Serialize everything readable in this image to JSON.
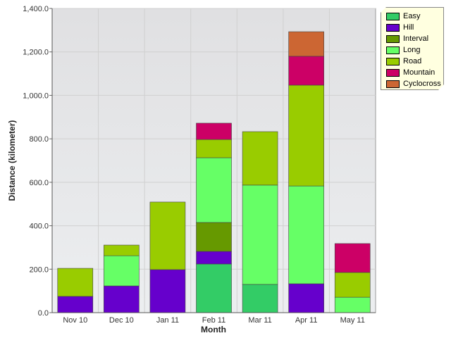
{
  "chart_data": {
    "type": "bar",
    "stacked": true,
    "xlabel": "Month",
    "ylabel": "Distance (kilometer)",
    "ylim": [
      0,
      1400
    ],
    "yticks": [
      "0.0",
      "200.0",
      "400.0",
      "600.0",
      "800.0",
      "1,000.0",
      "1,200.0",
      "1,400.0"
    ],
    "categories": [
      "Nov 10",
      "Dec 10",
      "Jan 11",
      "Feb 11",
      "Mar 11",
      "Apr 11",
      "May 11"
    ],
    "legend_position": "top-right",
    "series": [
      {
        "name": "Easy",
        "color": "#33cc66",
        "values": [
          0,
          0,
          0,
          224,
          130,
          0,
          0
        ]
      },
      {
        "name": "Hill",
        "color": "#6600cc",
        "values": [
          75,
          123,
          198,
          58,
          0,
          133,
          0
        ]
      },
      {
        "name": "Interval",
        "color": "#669900",
        "values": [
          0,
          0,
          0,
          133,
          0,
          0,
          0
        ]
      },
      {
        "name": "Long",
        "color": "#66ff66",
        "values": [
          0,
          139,
          0,
          298,
          457,
          450,
          71
        ]
      },
      {
        "name": "Road",
        "color": "#99cc00",
        "values": [
          129,
          49,
          311,
          84,
          246,
          464,
          114
        ]
      },
      {
        "name": "Mountain",
        "color": "#cc0066",
        "values": [
          0,
          0,
          0,
          75,
          0,
          133,
          133
        ]
      },
      {
        "name": "Cyclocross",
        "color": "#cc6633",
        "values": [
          0,
          0,
          0,
          0,
          0,
          113,
          0
        ]
      }
    ]
  }
}
